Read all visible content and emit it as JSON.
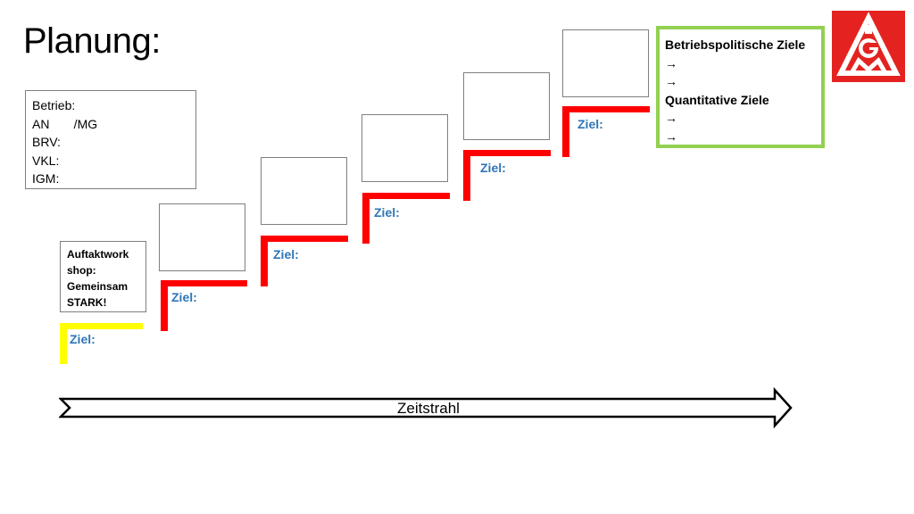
{
  "title": "Planung:",
  "info_box": {
    "lines": [
      "Betrieb:",
      "AN       /MG",
      "BRV:",
      "VKL:",
      "IGM:"
    ]
  },
  "kickoff_box": {
    "lines": [
      "Auftaktwork",
      "shop:",
      "Gemeinsam",
      "STARK!"
    ]
  },
  "steps": [
    {
      "label": "Ziel:"
    },
    {
      "label": "Ziel:"
    },
    {
      "label": "Ziel:"
    },
    {
      "label": "Ziel:"
    },
    {
      "label": "Ziel:"
    },
    {
      "label": "Ziel:"
    }
  ],
  "goals_box": {
    "heading_1": "Betriebspolitische Ziele",
    "arrow_1": "→",
    "arrow_2": "→",
    "heading_2": "Quantitative Ziele",
    "arrow_3": "→",
    "arrow_4": "→"
  },
  "timeline": {
    "label": "Zeitstrahl"
  },
  "logo": {
    "icon": "igm-logo-icon"
  },
  "colors": {
    "step_bar": "#ff0000",
    "first_step_bar": "#ffff00",
    "goals_border": "#92d050",
    "ziel_text": "#2e75b6",
    "logo_bg": "#e42320"
  }
}
